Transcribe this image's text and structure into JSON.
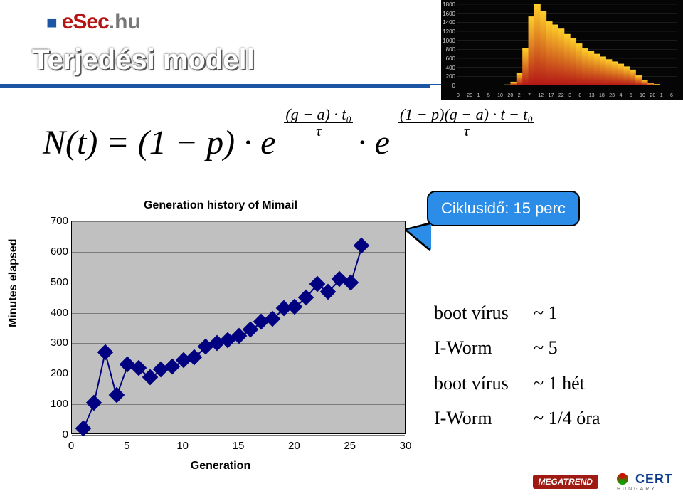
{
  "logo": {
    "square": "■",
    "esec": "eSec",
    "dot": ".",
    "hu": "hu"
  },
  "title": "Terjedési modell",
  "formula": {
    "lhs": "N(t) = (1 − p) · e",
    "exp1_num": "(g − a) ·  t₀",
    "exp1_den": "τ",
    "mid": " · e",
    "exp2_num": "(1 − p)(g − a) ·  t − t₀",
    "exp2_den": "τ"
  },
  "callout": "Ciklusidő: 15 perc",
  "sidetext": [
    {
      "label": "boot vírus",
      "val": "~ 1"
    },
    {
      "label": "I-Worm",
      "val": "~ 5"
    },
    {
      "label": "boot vírus",
      "val": "~ 1 hét"
    },
    {
      "label": "I-Worm",
      "val": "~ 1/4 óra"
    }
  ],
  "chart": {
    "title": "Generation history of Mimail",
    "xlabel": "Generation",
    "ylabel": "Minutes elapsed",
    "xlim": [
      0,
      30
    ],
    "ylim": [
      0,
      700
    ],
    "yticks": [
      0,
      100,
      200,
      300,
      400,
      500,
      600,
      700
    ],
    "xticks": [
      0,
      5,
      10,
      15,
      20,
      25,
      30
    ],
    "grid_color": "#7a7a7a",
    "plot_bg": "#c0c0c0",
    "marker_color": "#000080",
    "line_color": "#000080",
    "points": [
      [
        1,
        20
      ],
      [
        2,
        105
      ],
      [
        3,
        270
      ],
      [
        4,
        130
      ],
      [
        5,
        230
      ],
      [
        6,
        220
      ],
      [
        7,
        190
      ],
      [
        8,
        215
      ],
      [
        9,
        225
      ],
      [
        10,
        245
      ],
      [
        11,
        255
      ],
      [
        12,
        290
      ],
      [
        13,
        300
      ],
      [
        14,
        310
      ],
      [
        15,
        325
      ],
      [
        16,
        345
      ],
      [
        17,
        370
      ],
      [
        18,
        380
      ],
      [
        19,
        415
      ],
      [
        20,
        420
      ],
      [
        21,
        450
      ],
      [
        22,
        495
      ],
      [
        23,
        470
      ],
      [
        24,
        510
      ],
      [
        25,
        500
      ],
      [
        26,
        620
      ]
    ]
  },
  "mini": {
    "bg": "#050505",
    "ylabels": [
      "1800",
      "1600",
      "1400",
      "1200",
      "1000",
      "800",
      "600",
      "400",
      "200",
      "0"
    ],
    "xlabels": [
      "0",
      "20",
      "1",
      "5",
      "10",
      "20",
      "2",
      "7",
      "12",
      "17",
      "22",
      "3",
      "8",
      "13",
      "18",
      "23",
      "4",
      "5",
      "10",
      "20",
      "1",
      "6"
    ],
    "bars": [
      0,
      0,
      0,
      0,
      0,
      5,
      3,
      0,
      20,
      80,
      280,
      830,
      1530,
      1800,
      1650,
      1420,
      1350,
      1260,
      1140,
      1050,
      930,
      820,
      760,
      700,
      640,
      580,
      530,
      480,
      420,
      350,
      220,
      120,
      60,
      30,
      10,
      0,
      0
    ],
    "bar_color_top": "#ffcf2a",
    "bar_color_bot": "#b31616"
  },
  "footer": {
    "megatrend": "MEGATREND",
    "cert": "CERT",
    "cert_sub": "HUNGARY"
  }
}
